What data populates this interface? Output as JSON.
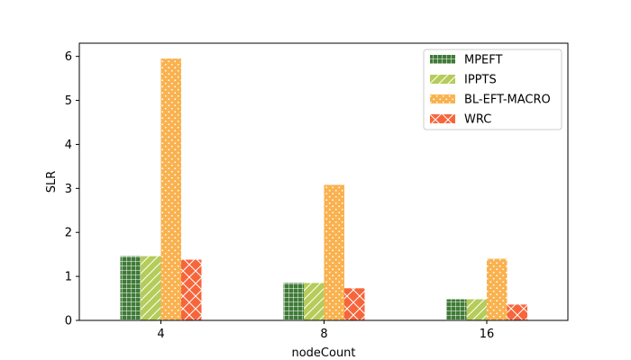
{
  "chart_data": {
    "type": "bar",
    "xlabel": "nodeCount",
    "ylabel": "SLR",
    "categories": [
      "4",
      "8",
      "16"
    ],
    "ylim": [
      0,
      6.3
    ],
    "yticks": [
      "0",
      "1",
      "2",
      "3",
      "4",
      "5",
      "6"
    ],
    "grid": false,
    "legend_position": "top-right",
    "series": [
      {
        "name": "MPEFT",
        "values": [
          1.46,
          0.85,
          0.48
        ],
        "color": "#3f7a37",
        "pattern": "grid"
      },
      {
        "name": "IPPTS",
        "values": [
          1.46,
          0.85,
          0.48
        ],
        "color": "#b5cc5a",
        "pattern": "diagonal"
      },
      {
        "name": "BL-EFT-MACRO",
        "values": [
          5.95,
          3.08,
          1.4
        ],
        "color": "#f9b24f",
        "pattern": "dots"
      },
      {
        "name": "WRC",
        "values": [
          1.38,
          0.73,
          0.36
        ],
        "color": "#f7653b",
        "pattern": "crosshatch"
      }
    ]
  }
}
